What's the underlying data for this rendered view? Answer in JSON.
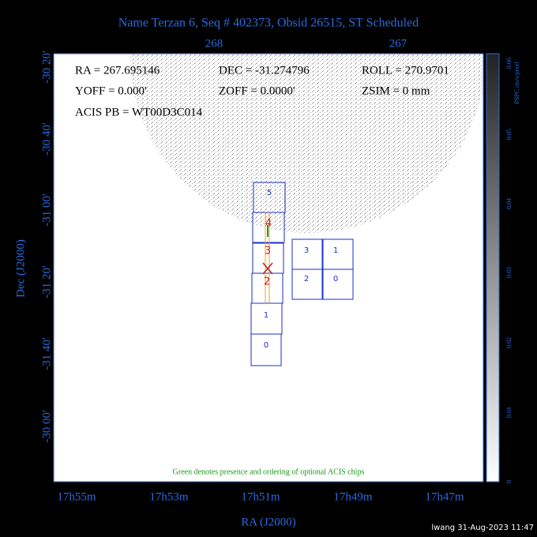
{
  "title": "Name Terzan 6, Seq # 402373, Obsid 26515, ST Scheduled",
  "info": [
    [
      "RA = 267.695146",
      "DEC = -31.274796",
      "ROLL = 270.9701"
    ],
    [
      "YOFF =  0.000'",
      "ZOFF =  0.0000'",
      "ZSIM = 0 mm"
    ],
    [
      "ACIS PB = WT00D3C014"
    ]
  ],
  "top_axis": [
    "268",
    "267"
  ],
  "left_axis": [
    "-30 20'",
    "-30 40'",
    "-31 00'",
    "-31 20'",
    "-31 40'",
    "-30 00'"
  ],
  "left_label": "Dec (J2000)",
  "bottom_axis": [
    "17h55m",
    "17h53m",
    "17h51m",
    "17h49m",
    "17h47m"
  ],
  "bottom_label": "RA (J2000)",
  "colorbar": {
    "label": "PSPC cts/s/pixel",
    "ticks": [
      "0.06",
      "0.05",
      "0.04",
      "0.03",
      "0.02",
      "0.01",
      "0"
    ]
  },
  "chips": [
    "5",
    "4",
    "3",
    "2",
    "1",
    "0",
    "3",
    "1",
    "2",
    "0"
  ],
  "note": "Green denotes presence and ordering of optional ACIS chips",
  "footer": "lwang 31-Aug-2023 11:47"
}
